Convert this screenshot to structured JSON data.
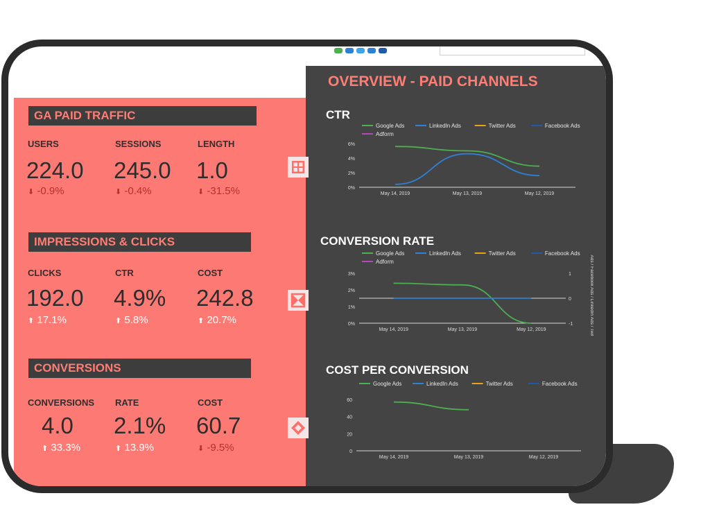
{
  "colors": {
    "left_panel": "#fd7a74",
    "right_panel": "#444444",
    "header_bar": "#3d3d3d",
    "accent_title": "#ff7d74",
    "up": "#ffffff",
    "down": "#b8302a",
    "google_ads": "#4caf50",
    "linkedin_ads": "#2f7fd3",
    "twitter_ads": "#e8a317",
    "facebook_ads": "#1f5aa6",
    "adform": "#b04ab5"
  },
  "left": {
    "sections": [
      {
        "title": "GA PAID TRAFFIC",
        "kpis": [
          {
            "label": "USERS",
            "value": "224.0",
            "delta": "-0.9%",
            "direction": "down"
          },
          {
            "label": "SESSIONS",
            "value": "245.0",
            "delta": "-0.4%",
            "direction": "down"
          },
          {
            "label": "LENGTH",
            "value": "1.0",
            "delta": "-31.5%",
            "direction": "down"
          }
        ]
      },
      {
        "title": "IMPRESSIONS & CLICKS",
        "kpis": [
          {
            "label": "CLICKS",
            "value": "192.0",
            "delta": "17.1%",
            "direction": "up"
          },
          {
            "label": "CTR",
            "value": "4.9%",
            "delta": "5.8%",
            "direction": "up"
          },
          {
            "label": "COST",
            "value": "242.8",
            "delta": "20.7%",
            "direction": "up"
          }
        ]
      },
      {
        "title": "CONVERSIONS",
        "kpis": [
          {
            "label": "CONVERSIONS",
            "value": "4.0",
            "delta": "33.3%",
            "direction": "up"
          },
          {
            "label": "RATE",
            "value": "2.1%",
            "delta": "13.9%",
            "direction": "up"
          },
          {
            "label": "COST",
            "value": "60.7",
            "delta": "-9.5%",
            "direction": "down"
          }
        ]
      }
    ]
  },
  "side_icons": [
    "grid-icon",
    "bowtie-icon",
    "diamond-icon"
  ],
  "right": {
    "title": "OVERVIEW - PAID CHANNELS"
  },
  "chart_data": [
    {
      "type": "line",
      "title": "CTR",
      "categories": [
        "May 14, 2019",
        "May 13, 2019",
        "May 12, 2019"
      ],
      "y_ticks": [
        "0%",
        "2%",
        "4%",
        "6%"
      ],
      "ylim": [
        0,
        6
      ],
      "legend": [
        "Google Ads",
        "LinkedIn Ads",
        "Twitter Ads",
        "Facebook Ads",
        "Adform"
      ],
      "legend_position": "top",
      "series": [
        {
          "name": "Google Ads",
          "values": [
            5.6,
            5.0,
            2.9
          ]
        },
        {
          "name": "LinkedIn Ads",
          "values": [
            0.4,
            4.6,
            1.6
          ]
        }
      ]
    },
    {
      "type": "line",
      "title": "CONVERSION RATE",
      "categories": [
        "May 14, 2019",
        "May 13, 2019",
        "May 12, 2019"
      ],
      "y_ticks": [
        "0%",
        "1%",
        "2%",
        "3%"
      ],
      "ylim": [
        0,
        3
      ],
      "y2_ticks": [
        "-1",
        "0",
        "1"
      ],
      "y2lim": [
        -1,
        1
      ],
      "y2label": "Ads / Facebook Ads / LinkedIn Ads / Twitter",
      "legend": [
        "Google Ads",
        "LinkedIn Ads",
        "Twitter Ads",
        "Facebook Ads",
        "Adform"
      ],
      "legend_position": "top",
      "series": [
        {
          "name": "Google Ads",
          "values": [
            2.4,
            2.3,
            0.0
          ]
        },
        {
          "name": "LinkedIn Ads",
          "axis": "right",
          "values": [
            0,
            0,
            0
          ]
        }
      ]
    },
    {
      "type": "line",
      "title": "COST PER CONVERSION",
      "categories": [
        "May 14, 2019",
        "May 13, 2019",
        "May 12, 2019"
      ],
      "y_ticks": [
        "0",
        "20",
        "40",
        "60"
      ],
      "ylim": [
        0,
        60
      ],
      "legend": [
        "Google Ads",
        "LinkedIn Ads",
        "Twitter Ads",
        "Facebook Ads"
      ],
      "legend_position": "top",
      "series": [
        {
          "name": "Google Ads",
          "values": [
            57,
            48,
            null
          ]
        }
      ]
    }
  ]
}
